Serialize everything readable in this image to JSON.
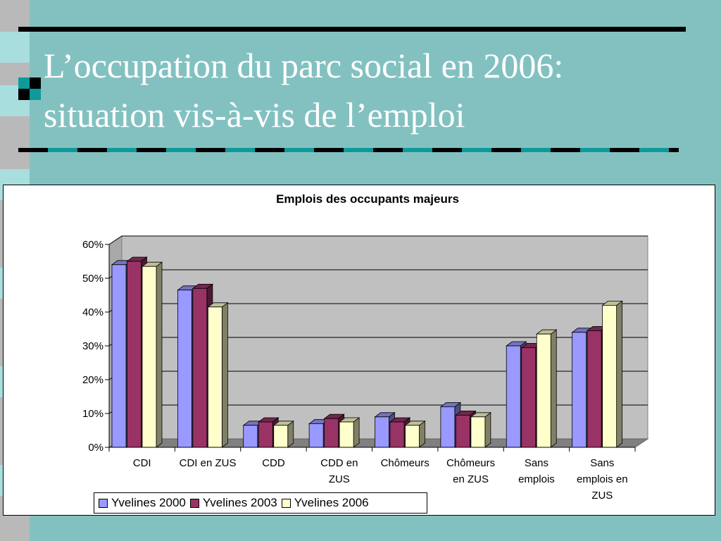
{
  "slide": {
    "title_line1": "L’occupation du parc social en 2006:",
    "title_line2": "situation vis-à-vis de l’emploi"
  },
  "colors": {
    "background": "#83c1c1",
    "accent": "#0e9a9a",
    "series": [
      "#9999ff",
      "#993366",
      "#ffffcc"
    ]
  },
  "chart_data": {
    "type": "bar",
    "title": "Emplois des occupants majeurs",
    "xlabel": "",
    "ylabel": "",
    "ylim": [
      0,
      0.6
    ],
    "y_ticks": [
      "0%",
      "10%",
      "20%",
      "30%",
      "40%",
      "50%",
      "60%"
    ],
    "grid": true,
    "legend_position": "bottom-left",
    "categories": [
      [
        "CDI"
      ],
      [
        "CDI en ZUS"
      ],
      [
        "CDD"
      ],
      [
        "CDD en",
        "ZUS"
      ],
      [
        "Chômeurs"
      ],
      [
        "Chômeurs",
        "en ZUS"
      ],
      [
        "Sans",
        "emplois"
      ],
      [
        "Sans",
        "emplois en",
        "ZUS"
      ]
    ],
    "series": [
      {
        "name": "Yvelines 2000",
        "values": [
          0.54,
          0.465,
          0.065,
          0.07,
          0.09,
          0.12,
          0.3,
          0.34
        ]
      },
      {
        "name": "Yvelines 2003",
        "values": [
          0.55,
          0.47,
          0.075,
          0.085,
          0.075,
          0.095,
          0.295,
          0.345
        ]
      },
      {
        "name": "Yvelines 2006",
        "values": [
          0.535,
          0.415,
          0.065,
          0.075,
          0.065,
          0.09,
          0.335,
          0.42
        ]
      }
    ]
  }
}
